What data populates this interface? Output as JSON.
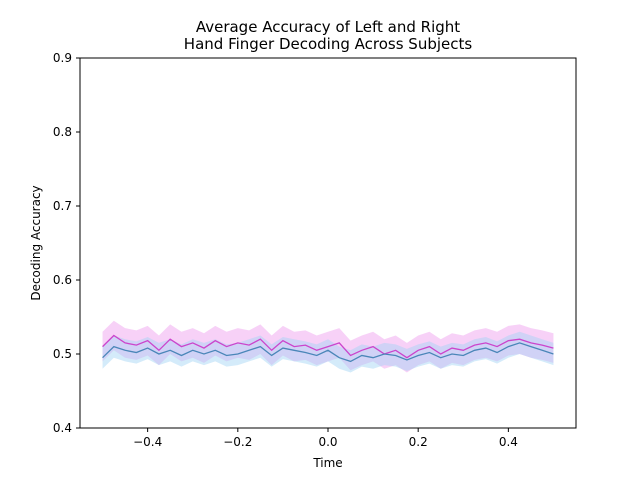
{
  "chart_data": {
    "type": "line",
    "title_lines": [
      "Average Accuracy of Left and Right",
      "Hand Finger Decoding Across Subjects"
    ],
    "xlabel": "Time",
    "ylabel": "Decoding Accuracy",
    "xlim": [
      -0.55,
      0.55
    ],
    "ylim": [
      0.4,
      0.9
    ],
    "x_ticks": [
      -0.4,
      -0.2,
      0.0,
      0.2,
      0.4
    ],
    "x_tick_labels": [
      "−0.4",
      "−0.2",
      "0.0",
      "0.2",
      "0.4"
    ],
    "y_ticks": [
      0.4,
      0.5,
      0.6,
      0.7,
      0.8,
      0.9
    ],
    "y_tick_labels": [
      "0.4",
      "0.5",
      "0.6",
      "0.7",
      "0.8",
      "0.9"
    ],
    "grid": false,
    "x": [
      -0.5,
      -0.475,
      -0.45,
      -0.425,
      -0.4,
      -0.375,
      -0.35,
      -0.325,
      -0.3,
      -0.275,
      -0.25,
      -0.225,
      -0.2,
      -0.175,
      -0.15,
      -0.125,
      -0.1,
      -0.075,
      -0.05,
      -0.025,
      0.0,
      0.025,
      0.05,
      0.075,
      0.1,
      0.125,
      0.15,
      0.175,
      0.2,
      0.225,
      0.25,
      0.275,
      0.3,
      0.325,
      0.35,
      0.375,
      0.4,
      0.425,
      0.45,
      0.475,
      0.5
    ],
    "series": [
      {
        "color": "#cc44cc",
        "band_color": "#ee99ee",
        "values": [
          0.51,
          0.525,
          0.515,
          0.512,
          0.518,
          0.505,
          0.52,
          0.51,
          0.515,
          0.508,
          0.518,
          0.51,
          0.515,
          0.512,
          0.52,
          0.505,
          0.518,
          0.51,
          0.512,
          0.505,
          0.51,
          0.515,
          0.498,
          0.505,
          0.51,
          0.5,
          0.505,
          0.495,
          0.505,
          0.51,
          0.5,
          0.508,
          0.505,
          0.512,
          0.515,
          0.51,
          0.518,
          0.52,
          0.515,
          0.512,
          0.508
        ],
        "lower": [
          0.49,
          0.505,
          0.495,
          0.492,
          0.498,
          0.485,
          0.5,
          0.49,
          0.495,
          0.488,
          0.498,
          0.49,
          0.495,
          0.492,
          0.5,
          0.485,
          0.498,
          0.49,
          0.492,
          0.485,
          0.49,
          0.495,
          0.478,
          0.485,
          0.49,
          0.48,
          0.485,
          0.475,
          0.485,
          0.49,
          0.48,
          0.488,
          0.485,
          0.492,
          0.495,
          0.49,
          0.498,
          0.5,
          0.495,
          0.492,
          0.488
        ],
        "upper": [
          0.53,
          0.545,
          0.535,
          0.532,
          0.538,
          0.525,
          0.54,
          0.53,
          0.535,
          0.528,
          0.538,
          0.53,
          0.535,
          0.532,
          0.54,
          0.525,
          0.538,
          0.53,
          0.532,
          0.525,
          0.53,
          0.535,
          0.518,
          0.525,
          0.53,
          0.52,
          0.525,
          0.515,
          0.525,
          0.53,
          0.52,
          0.528,
          0.525,
          0.532,
          0.535,
          0.53,
          0.538,
          0.54,
          0.535,
          0.532,
          0.528
        ]
      },
      {
        "color": "#4a86b8",
        "band_color": "#9fd3f5",
        "values": [
          0.495,
          0.51,
          0.505,
          0.502,
          0.508,
          0.5,
          0.505,
          0.498,
          0.505,
          0.5,
          0.505,
          0.498,
          0.5,
          0.505,
          0.51,
          0.498,
          0.508,
          0.505,
          0.502,
          0.498,
          0.505,
          0.495,
          0.49,
          0.498,
          0.495,
          0.5,
          0.498,
          0.492,
          0.498,
          0.502,
          0.495,
          0.5,
          0.498,
          0.505,
          0.508,
          0.502,
          0.51,
          0.515,
          0.51,
          0.505,
          0.5
        ],
        "lower": [
          0.48,
          0.495,
          0.49,
          0.487,
          0.493,
          0.485,
          0.49,
          0.483,
          0.49,
          0.485,
          0.49,
          0.483,
          0.485,
          0.49,
          0.495,
          0.483,
          0.493,
          0.49,
          0.487,
          0.483,
          0.49,
          0.48,
          0.475,
          0.483,
          0.48,
          0.485,
          0.483,
          0.477,
          0.483,
          0.487,
          0.48,
          0.485,
          0.483,
          0.49,
          0.493,
          0.487,
          0.495,
          0.5,
          0.495,
          0.49,
          0.485
        ],
        "upper": [
          0.51,
          0.525,
          0.52,
          0.517,
          0.523,
          0.515,
          0.52,
          0.513,
          0.52,
          0.515,
          0.52,
          0.513,
          0.515,
          0.52,
          0.525,
          0.513,
          0.523,
          0.52,
          0.517,
          0.513,
          0.52,
          0.51,
          0.505,
          0.513,
          0.51,
          0.515,
          0.513,
          0.507,
          0.513,
          0.517,
          0.51,
          0.515,
          0.513,
          0.52,
          0.523,
          0.517,
          0.525,
          0.53,
          0.525,
          0.52,
          0.515
        ]
      }
    ]
  }
}
